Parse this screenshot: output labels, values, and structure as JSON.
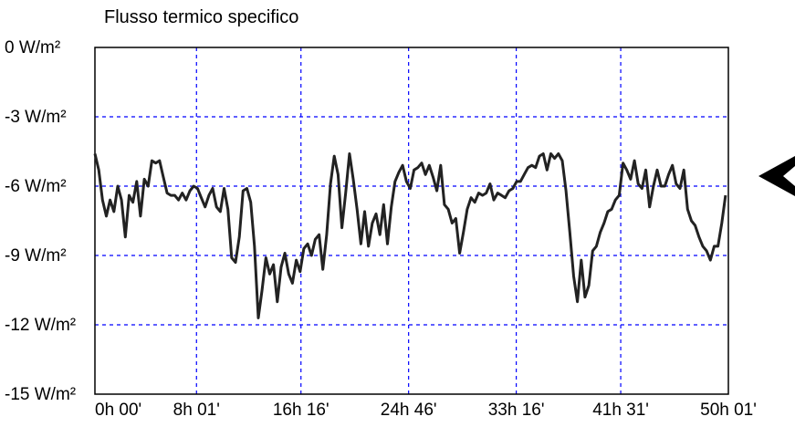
{
  "colors": {
    "background": "#ffffff",
    "plot_border": "#000000",
    "grid": "#0000ff",
    "series": "#222222",
    "marker": "#000000"
  },
  "chart_data": {
    "type": "line",
    "title": "Flusso termico specifico",
    "xlabel": "",
    "ylabel": "",
    "grid": true,
    "grid_style": "dashed",
    "legend": "none",
    "y_unit": "W/m²",
    "ylim": [
      -15,
      0
    ],
    "y_ticks": [
      0,
      -3,
      -6,
      -9,
      -12,
      -15
    ],
    "y_tick_labels": [
      "0 W/m²",
      "-3 W/m²",
      "-6 W/m²",
      "-9 W/m²",
      "-12 W/m²",
      "-15 W/m²"
    ],
    "x_unit": "hours",
    "xlim": [
      0,
      50.02
    ],
    "x_ticks": [
      0,
      8.02,
      16.27,
      24.77,
      33.27,
      41.52,
      50.02
    ],
    "x_tick_labels": [
      "0h 00'",
      "8h 01'",
      "16h 16'",
      "24h 46'",
      "33h 16'",
      "41h 31'",
      "50h 01'"
    ],
    "series": [
      {
        "values": [
          [
            0.0,
            -4.6
          ],
          [
            0.3,
            -5.3
          ],
          [
            0.6,
            -6.6
          ],
          [
            0.9,
            -7.3
          ],
          [
            1.2,
            -6.6
          ],
          [
            1.5,
            -7.1
          ],
          [
            1.8,
            -6.0
          ],
          [
            2.1,
            -6.6
          ],
          [
            2.4,
            -8.2
          ],
          [
            2.7,
            -6.4
          ],
          [
            3.0,
            -6.7
          ],
          [
            3.3,
            -5.8
          ],
          [
            3.6,
            -7.3
          ],
          [
            3.9,
            -5.7
          ],
          [
            4.2,
            -6.0
          ],
          [
            4.5,
            -4.9
          ],
          [
            4.8,
            -5.0
          ],
          [
            5.1,
            -4.9
          ],
          [
            5.4,
            -5.6
          ],
          [
            5.7,
            -6.3
          ],
          [
            6.0,
            -6.4
          ],
          [
            6.3,
            -6.4
          ],
          [
            6.6,
            -6.6
          ],
          [
            6.9,
            -6.3
          ],
          [
            7.2,
            -6.6
          ],
          [
            7.5,
            -6.2
          ],
          [
            7.8,
            -6.0
          ],
          [
            8.1,
            -6.1
          ],
          [
            8.4,
            -6.5
          ],
          [
            8.7,
            -6.9
          ],
          [
            9.0,
            -6.4
          ],
          [
            9.3,
            -6.1
          ],
          [
            9.6,
            -6.9
          ],
          [
            9.9,
            -7.1
          ],
          [
            10.2,
            -6.1
          ],
          [
            10.5,
            -7.0
          ],
          [
            10.8,
            -9.1
          ],
          [
            11.1,
            -9.3
          ],
          [
            11.4,
            -8.2
          ],
          [
            11.7,
            -6.2
          ],
          [
            12.0,
            -6.1
          ],
          [
            12.3,
            -6.7
          ],
          [
            12.6,
            -8.6
          ],
          [
            12.9,
            -11.7
          ],
          [
            13.2,
            -10.5
          ],
          [
            13.5,
            -9.1
          ],
          [
            13.8,
            -9.8
          ],
          [
            14.1,
            -9.4
          ],
          [
            14.4,
            -11.0
          ],
          [
            14.7,
            -9.5
          ],
          [
            15.0,
            -8.9
          ],
          [
            15.3,
            -9.8
          ],
          [
            15.6,
            -10.2
          ],
          [
            15.9,
            -9.2
          ],
          [
            16.2,
            -9.7
          ],
          [
            16.5,
            -8.7
          ],
          [
            16.8,
            -8.5
          ],
          [
            17.1,
            -9.0
          ],
          [
            17.4,
            -8.3
          ],
          [
            17.7,
            -8.1
          ],
          [
            18.0,
            -9.6
          ],
          [
            18.3,
            -8.1
          ],
          [
            18.6,
            -5.9
          ],
          [
            18.9,
            -4.7
          ],
          [
            19.2,
            -5.5
          ],
          [
            19.5,
            -7.8
          ],
          [
            19.8,
            -6.3
          ],
          [
            20.1,
            -4.6
          ],
          [
            20.4,
            -5.7
          ],
          [
            20.7,
            -7.0
          ],
          [
            21.0,
            -8.5
          ],
          [
            21.3,
            -7.1
          ],
          [
            21.6,
            -8.6
          ],
          [
            21.9,
            -7.6
          ],
          [
            22.2,
            -7.2
          ],
          [
            22.5,
            -8.1
          ],
          [
            22.8,
            -6.8
          ],
          [
            23.1,
            -8.5
          ],
          [
            23.4,
            -6.9
          ],
          [
            23.7,
            -5.8
          ],
          [
            24.0,
            -5.4
          ],
          [
            24.3,
            -5.1
          ],
          [
            24.6,
            -5.8
          ],
          [
            24.9,
            -6.1
          ],
          [
            25.2,
            -5.3
          ],
          [
            25.5,
            -5.2
          ],
          [
            25.8,
            -5.0
          ],
          [
            26.1,
            -5.5
          ],
          [
            26.4,
            -5.1
          ],
          [
            26.7,
            -5.6
          ],
          [
            27.0,
            -6.2
          ],
          [
            27.3,
            -5.1
          ],
          [
            27.6,
            -6.8
          ],
          [
            27.9,
            -7.0
          ],
          [
            28.2,
            -7.6
          ],
          [
            28.5,
            -7.4
          ],
          [
            28.8,
            -8.9
          ],
          [
            29.1,
            -8.0
          ],
          [
            29.4,
            -7.0
          ],
          [
            29.7,
            -6.5
          ],
          [
            30.0,
            -6.7
          ],
          [
            30.3,
            -6.3
          ],
          [
            30.6,
            -6.4
          ],
          [
            30.9,
            -6.3
          ],
          [
            31.2,
            -5.9
          ],
          [
            31.5,
            -6.6
          ],
          [
            31.8,
            -6.3
          ],
          [
            32.1,
            -6.4
          ],
          [
            32.4,
            -6.5
          ],
          [
            32.7,
            -6.2
          ],
          [
            33.0,
            -6.1
          ],
          [
            33.3,
            -5.8
          ],
          [
            33.6,
            -5.8
          ],
          [
            33.9,
            -5.5
          ],
          [
            34.2,
            -5.2
          ],
          [
            34.5,
            -5.1
          ],
          [
            34.8,
            -5.2
          ],
          [
            35.1,
            -4.7
          ],
          [
            35.4,
            -4.6
          ],
          [
            35.7,
            -5.3
          ],
          [
            36.0,
            -4.6
          ],
          [
            36.3,
            -4.8
          ],
          [
            36.6,
            -4.6
          ],
          [
            36.9,
            -4.9
          ],
          [
            37.2,
            -6.2
          ],
          [
            37.5,
            -8.0
          ],
          [
            37.8,
            -9.9
          ],
          [
            38.1,
            -11.0
          ],
          [
            38.4,
            -9.2
          ],
          [
            38.7,
            -10.8
          ],
          [
            39.0,
            -10.3
          ],
          [
            39.3,
            -8.8
          ],
          [
            39.6,
            -8.6
          ],
          [
            39.9,
            -8.0
          ],
          [
            40.2,
            -7.6
          ],
          [
            40.5,
            -7.1
          ],
          [
            40.8,
            -7.0
          ],
          [
            41.1,
            -6.6
          ],
          [
            41.4,
            -6.4
          ],
          [
            41.7,
            -5.0
          ],
          [
            42.0,
            -5.3
          ],
          [
            42.3,
            -5.7
          ],
          [
            42.6,
            -4.9
          ],
          [
            42.9,
            -5.9
          ],
          [
            43.2,
            -6.1
          ],
          [
            43.5,
            -5.3
          ],
          [
            43.8,
            -6.9
          ],
          [
            44.1,
            -6.0
          ],
          [
            44.4,
            -5.3
          ],
          [
            44.7,
            -6.0
          ],
          [
            45.0,
            -6.0
          ],
          [
            45.3,
            -5.5
          ],
          [
            45.6,
            -5.1
          ],
          [
            45.9,
            -5.9
          ],
          [
            46.2,
            -6.1
          ],
          [
            46.5,
            -5.3
          ],
          [
            46.8,
            -7.0
          ],
          [
            47.1,
            -7.5
          ],
          [
            47.4,
            -7.7
          ],
          [
            47.7,
            -8.2
          ],
          [
            48.0,
            -8.6
          ],
          [
            48.3,
            -8.8
          ],
          [
            48.6,
            -9.2
          ],
          [
            48.9,
            -8.6
          ],
          [
            49.2,
            -8.6
          ],
          [
            49.5,
            -7.6
          ],
          [
            49.8,
            -6.4
          ]
        ]
      }
    ]
  }
}
